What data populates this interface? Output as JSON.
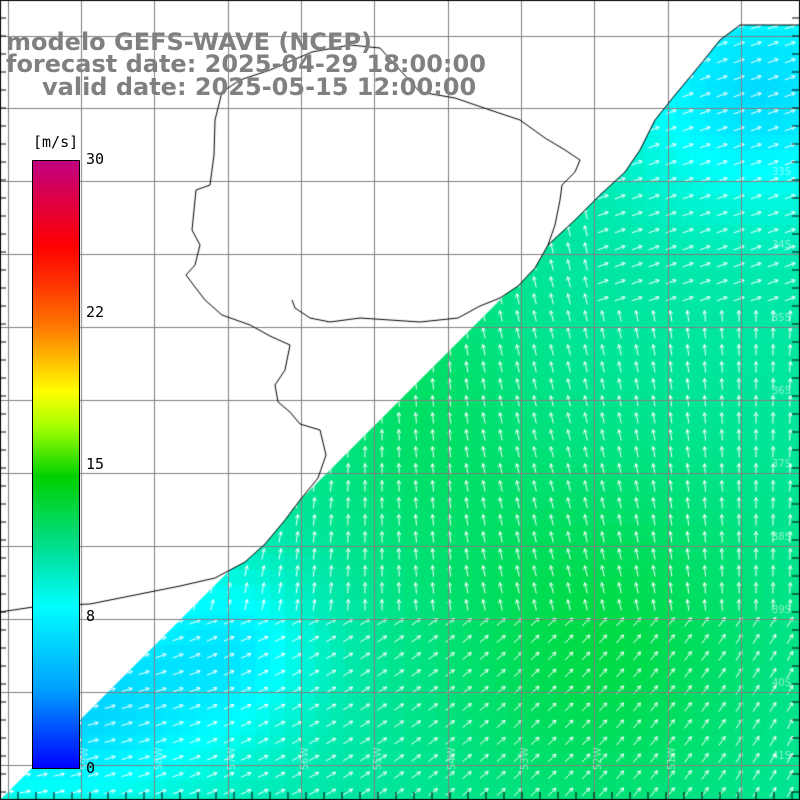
{
  "header": {
    "model": "modelo GEFS-WAVE (NCEP)",
    "forecast": "forecast date: 2025-04-29 18:00:00",
    "valid": "valid date: 2025-05-15 12:00:00"
  },
  "colorbar": {
    "units": "[m/s]",
    "min": 0,
    "max": 30,
    "tick_labels": [
      "30",
      "22",
      "15",
      "8",
      "0"
    ],
    "colors": [
      "#0000ff",
      "#00a0ff",
      "#00ffff",
      "#00e0a0",
      "#00d000",
      "#a0ff00",
      "#ffff00",
      "#ff8000",
      "#ff0000",
      "#c00080"
    ]
  },
  "map": {
    "field": "wind speed with direction arrows",
    "land_color": "#ffffff",
    "coast_color": "#000000",
    "grid_color": "#808080",
    "lat_labels": [
      "33S",
      "34S",
      "35S",
      "36S",
      "37S",
      "38S",
      "39S",
      "40S",
      "41S"
    ],
    "lon_labels": [
      "59W",
      "58W",
      "57W",
      "56W",
      "55W",
      "54W",
      "53W",
      "52W",
      "51W"
    ]
  }
}
